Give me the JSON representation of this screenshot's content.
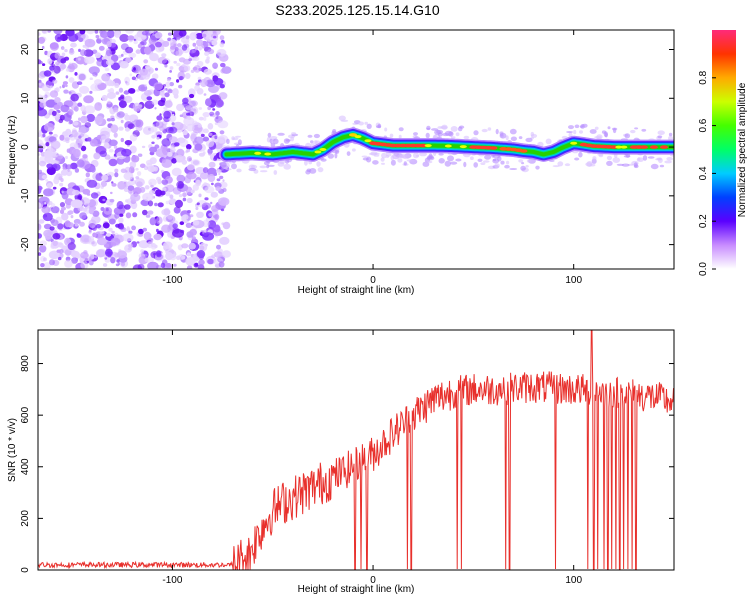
{
  "title": "S233.2025.125.15.14.G10",
  "chart_data": [
    {
      "type": "heatmap",
      "xlabel": "Height of straight line (km)",
      "ylabel": "Frequency (Hz)",
      "xlim": [
        -167,
        150
      ],
      "ylim": [
        -25,
        24
      ],
      "x_ticks": [
        -100,
        0,
        100
      ],
      "y_ticks": [
        -20,
        -10,
        0,
        10,
        20
      ],
      "colorbar": {
        "label": "Normalized spectral amplitude",
        "range": [
          0,
          1
        ],
        "ticks": [
          "0.0",
          "0.2",
          "0.4",
          "0.6",
          "0.8"
        ]
      },
      "noise_region_x": [
        -167,
        -73
      ],
      "ridge": {
        "x": [
          -73,
          -60,
          -50,
          -40,
          -30,
          -25,
          -20,
          -15,
          -10,
          -5,
          0,
          10,
          20,
          30,
          40,
          50,
          60,
          70,
          75,
          80,
          85,
          90,
          95,
          100,
          105,
          110,
          120,
          130,
          140,
          150
        ],
        "y": [
          -1.5,
          -1.2,
          -1.5,
          -1.0,
          -1.5,
          -0.5,
          1.0,
          2.0,
          2.5,
          1.8,
          0.8,
          0.3,
          0.3,
          0.3,
          0.2,
          0.0,
          -0.2,
          -0.5,
          -0.8,
          -1.0,
          -1.5,
          -1.0,
          0.0,
          0.8,
          0.5,
          0.2,
          0.0,
          0.0,
          0.0,
          0.0
        ]
      }
    },
    {
      "type": "line",
      "xlabel": "Height of straight line (km)",
      "ylabel": "SNR (10 * v/v)",
      "xlim": [
        -167,
        150
      ],
      "ylim": [
        0,
        930
      ],
      "x_ticks": [
        -100,
        0,
        100
      ],
      "y_ticks": [
        0,
        200,
        400,
        600,
        800
      ],
      "color": "#e8302c",
      "trend": {
        "x": [
          -167,
          -70,
          -62,
          -55,
          -50,
          -45,
          -40,
          -30,
          -20,
          -10,
          0,
          10,
          20,
          30,
          40,
          50,
          60,
          80,
          100,
          120,
          140,
          150
        ],
        "y": [
          20,
          20,
          60,
          170,
          230,
          260,
          280,
          320,
          360,
          400,
          450,
          530,
          600,
          660,
          690,
          700,
          700,
          710,
          700,
          690,
          670,
          650
        ]
      },
      "dropouts_x": [
        -9,
        -6,
        -3,
        17,
        19,
        42,
        44,
        66,
        68,
        91,
        107,
        110,
        112,
        115,
        117,
        119,
        121,
        123,
        125,
        127,
        129,
        131
      ],
      "peak": {
        "x": 109,
        "y": 930
      }
    }
  ]
}
